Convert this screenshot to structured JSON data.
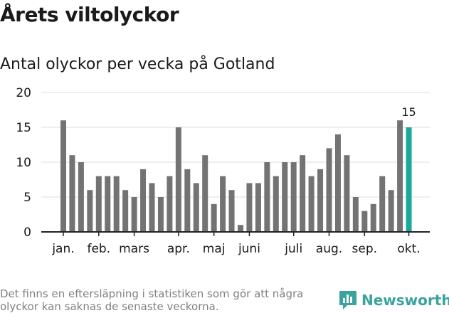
{
  "header": {
    "title": "Årets viltolyckor",
    "subtitle": "Antal olyckor per vecka på Gotland"
  },
  "footer": {
    "note": "Det finns en eftersläpning i statistiken som gör att några olyckor kan saknas de senaste veckorna.",
    "brand": "Newsworthy"
  },
  "colors": {
    "bar": "#737373",
    "highlight": "#1ba99a",
    "grid": "#dddddd",
    "axis": "#222222",
    "brand": "#3aa39e"
  },
  "icons": {
    "logo": "newsworthy-chat-chart-icon"
  },
  "chart_data": {
    "type": "bar",
    "title": "Antal olyckor per vecka på Gotland",
    "xlabel": "",
    "ylabel": "",
    "ylim": [
      0,
      20
    ],
    "yticks": [
      0,
      5,
      10,
      15,
      20
    ],
    "grid": true,
    "weeks": [
      1,
      2,
      3,
      4,
      5,
      6,
      7,
      8,
      9,
      10,
      11,
      12,
      13,
      14,
      15,
      16,
      17,
      18,
      19,
      20,
      21,
      22,
      23,
      24,
      25,
      26,
      27,
      28,
      29,
      30,
      31,
      32,
      33,
      34,
      35,
      36,
      37,
      38,
      39,
      40
    ],
    "values": [
      16,
      11,
      10,
      6,
      8,
      8,
      8,
      6,
      5,
      9,
      7,
      5,
      8,
      15,
      9,
      7,
      11,
      4,
      8,
      6,
      1,
      7,
      7,
      10,
      8,
      10,
      10,
      11,
      8,
      9,
      12,
      14,
      11,
      5,
      3,
      4,
      8,
      6,
      16,
      15
    ],
    "highlight_index": 39,
    "highlight_label": "15",
    "month_labels": [
      {
        "label": "jan.",
        "week": 1
      },
      {
        "label": "feb.",
        "week": 5
      },
      {
        "label": "mars",
        "week": 9
      },
      {
        "label": "apr.",
        "week": 14
      },
      {
        "label": "maj",
        "week": 18
      },
      {
        "label": "juni",
        "week": 22
      },
      {
        "label": "juli",
        "week": 27
      },
      {
        "label": "aug.",
        "week": 31
      },
      {
        "label": "sep.",
        "week": 35
      },
      {
        "label": "okt.",
        "week": 40
      }
    ]
  }
}
